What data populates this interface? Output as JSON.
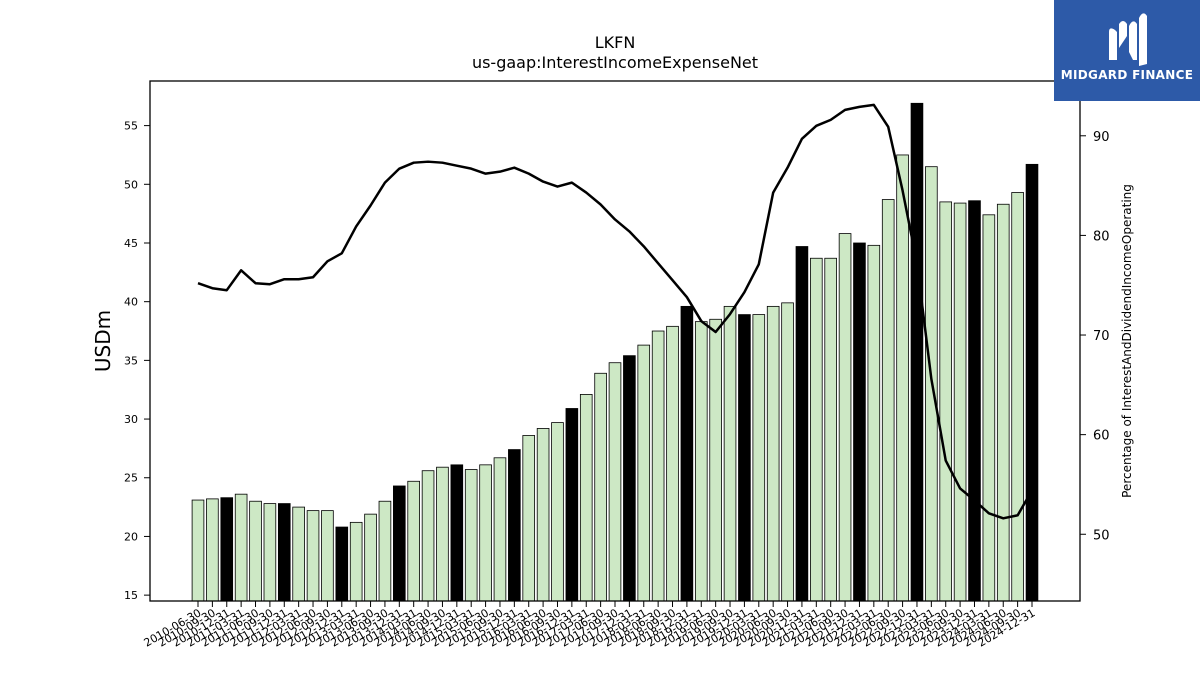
{
  "chart_data": {
    "type": "bar",
    "title": "LKFN",
    "subtitle": "us-gaap:InterestIncomeExpenseNet",
    "ylabel": "USDm",
    "y2label": "Percentage of InterestAndDividendIncomeOperating",
    "ylim": [
      14.5,
      58.8
    ],
    "y2lim": [
      43.3,
      95.5
    ],
    "yticks": [
      15,
      20,
      25,
      30,
      35,
      40,
      45,
      50,
      55
    ],
    "y2ticks": [
      50,
      60,
      70,
      80,
      90
    ],
    "grid": false,
    "categories": [
      "2010-06-30",
      "2010-09-30",
      "2010-12-31",
      "2011-03-31",
      "2011-06-30",
      "2011-09-30",
      "2011-12-31",
      "2012-03-31",
      "2012-06-30",
      "2012-09-30",
      "2012-12-31",
      "2013-03-31",
      "2013-06-30",
      "2013-09-30",
      "2013-12-31",
      "2014-03-31",
      "2014-06-30",
      "2014-09-30",
      "2014-12-31",
      "2015-03-31",
      "2015-06-30",
      "2015-09-30",
      "2015-12-31",
      "2016-03-31",
      "2016-06-30",
      "2016-09-30",
      "2016-12-31",
      "2017-03-31",
      "2017-06-30",
      "2017-09-30",
      "2017-12-31",
      "2018-03-31",
      "2018-06-30",
      "2018-09-30",
      "2018-12-31",
      "2019-03-31",
      "2019-06-30",
      "2019-09-30",
      "2019-12-31",
      "2020-03-31",
      "2020-06-30",
      "2020-09-30",
      "2020-12-31",
      "2021-03-31",
      "2021-06-30",
      "2021-09-30",
      "2021-12-31",
      "2022-03-31",
      "2022-06-30",
      "2022-09-30",
      "2022-12-31",
      "2023-03-31",
      "2023-06-30",
      "2023-09-30",
      "2023-12-31",
      "2024-03-31",
      "2024-06-30",
      "2024-09-30",
      "2024-12-31"
    ],
    "values": [
      23.1,
      23.2,
      23.3,
      23.6,
      23.0,
      22.8,
      22.8,
      22.5,
      22.2,
      22.2,
      20.8,
      21.2,
      21.9,
      23.0,
      24.3,
      24.7,
      25.6,
      25.9,
      26.1,
      25.7,
      26.1,
      26.7,
      27.4,
      28.6,
      29.2,
      29.7,
      30.9,
      32.1,
      33.9,
      34.8,
      35.4,
      36.3,
      37.5,
      37.9,
      39.6,
      38.3,
      38.5,
      39.6,
      38.9,
      38.9,
      39.6,
      39.9,
      44.7,
      43.7,
      43.7,
      45.8,
      45.0,
      44.8,
      48.7,
      52.5,
      56.9,
      51.5,
      48.5,
      48.4,
      48.6,
      47.4,
      48.3,
      49.3,
      51.7
    ],
    "highlight_color": "#000000",
    "bar_color": "#cde8c5",
    "line_color": "#000000",
    "series": [
      {
        "axis": "left",
        "values": [
          23.1,
          23.2,
          23.3,
          23.6,
          23.0,
          22.8,
          22.8,
          22.5,
          22.2,
          22.2,
          20.8,
          21.2,
          21.9,
          23.0,
          24.3,
          24.7,
          25.6,
          25.9,
          26.1,
          25.7,
          26.1,
          26.7,
          27.4,
          28.6,
          29.2,
          29.7,
          30.9,
          32.1,
          33.9,
          34.8,
          35.4,
          36.3,
          37.5,
          37.9,
          39.6,
          38.3,
          38.5,
          39.6,
          38.9,
          38.9,
          39.6,
          39.9,
          44.7,
          43.7,
          43.7,
          45.8,
          45.0,
          44.8,
          48.7,
          52.5,
          56.9,
          51.5,
          48.5,
          48.4,
          48.6,
          47.4,
          48.3,
          49.3,
          51.7
        ]
      },
      {
        "axis": "right",
        "type": "line",
        "values": [
          75.2,
          74.7,
          74.5,
          76.5,
          75.2,
          75.1,
          75.6,
          75.6,
          75.8,
          77.4,
          78.2,
          80.9,
          83.0,
          85.3,
          86.7,
          87.3,
          87.4,
          87.3,
          87.0,
          86.7,
          86.2,
          86.4,
          86.8,
          86.2,
          85.4,
          84.9,
          85.3,
          84.3,
          83.1,
          81.6,
          80.4,
          78.9,
          77.2,
          75.5,
          73.8,
          71.4,
          70.3,
          72.1,
          74.3,
          77.1,
          84.3,
          86.8,
          89.7,
          91.0,
          91.6,
          92.6,
          92.9,
          93.1,
          90.9,
          84.5,
          77.2,
          65.6,
          57.4,
          54.6,
          53.4,
          52.1,
          51.6,
          51.9,
          54.4
        ]
      }
    ]
  },
  "logo": {
    "text": "MIDGARD FINANCE",
    "background": "#2d5aa8"
  }
}
